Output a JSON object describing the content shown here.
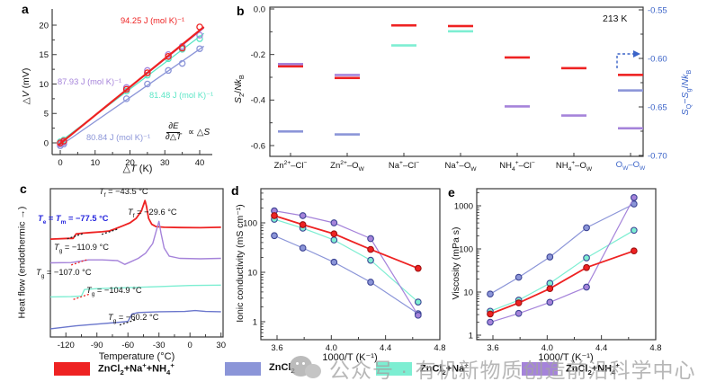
{
  "panel_labels": {
    "a": "a",
    "b": "b",
    "c": "c",
    "d": "d",
    "e": "e"
  },
  "legend": [
    {
      "key": "zncl2-na-nh4",
      "label_html": "ZnCl<sub>2</sub>+Na<sup>+</sup>+NH<sub>4</sub><sup>+</sup>",
      "color": "#ee2222"
    },
    {
      "key": "zncl2",
      "label_html": "ZnCl<sub>2</sub>",
      "color": "#8b95d8"
    },
    {
      "key": "zncl2-na",
      "label_html": "ZnCl<sub>2</sub>+Na<sup>+</sup>",
      "color": "#7deed2"
    },
    {
      "key": "zncl2-nh4",
      "label_html": "ZnCl<sub>2</sub>+NH<sub>4</sub><sup>+</sup>",
      "color": "#a583da"
    }
  ],
  "watermark_text": "公众号 · 有机新物质创造前沿科学中心",
  "chart_data": [
    {
      "id": "a",
      "type": "scatter",
      "xlabel_html": "△<i>T</i> (K)",
      "ylabel_html": "△<i>V</i> (mV)",
      "xticks": [
        0,
        10,
        20,
        30,
        40
      ],
      "yticks": [
        0,
        5,
        10,
        15,
        20
      ],
      "xlim": [
        -2.5,
        42.5
      ],
      "ylim": [
        -2.2,
        21.8
      ],
      "x": [
        0,
        1,
        19,
        25,
        31,
        35,
        40
      ],
      "series": [
        {
          "key": "zncl2-na-nh4",
          "color": "#ee2222",
          "values": [
            0.0,
            0.3,
            9.1,
            11.9,
            14.7,
            16.1,
            19.7
          ],
          "slope_label": "94.25 J (mol K)⁻¹"
        },
        {
          "key": "zncl2-nh4",
          "color": "#a583da",
          "values": [
            -0.2,
            0.1,
            9.4,
            12.3,
            15.0,
            16.4,
            18.3
          ],
          "slope_label": "87.93 J (mol K)⁻¹"
        },
        {
          "key": "zncl2-na",
          "color": "#5ce6c6",
          "values": [
            0.2,
            0.5,
            8.8,
            11.5,
            14.3,
            15.9,
            17.7
          ],
          "slope_label": "81.48 J (mol K)⁻¹"
        },
        {
          "key": "zncl2",
          "color": "#8b95d8",
          "values": [
            -0.5,
            -0.2,
            7.5,
            10.0,
            12.3,
            13.5,
            16.0
          ],
          "slope_label": "80.84 J (mol K)⁻¹"
        }
      ],
      "formula": {
        "num_html": "∂<i>E</i>",
        "den_html": "∂△<i>T</i>",
        "rhs_html": "∝ △<i>S</i>"
      }
    },
    {
      "id": "b",
      "type": "levels",
      "note": "213 K",
      "ylabel_left_html": "<i>S</i><sub>2</sub>/<i>Nk</i><sub>B</sub>",
      "ylabel_right_html": "<i>S</i><sub>Q</sub>−<i>S</i><sub>g</sub>/<i>Nk</i><sub>B</sub>",
      "yticks_left": [
        0.0,
        -0.2,
        -0.4,
        -0.6
      ],
      "yticks_right": [
        -0.55,
        -0.6,
        -0.65,
        -0.7
      ],
      "right_axis_color": "#3c64c8",
      "categories_html": [
        "Zn<sup>2+</sup>–Cl<sup>−</sup>",
        "Zn<sup>2+</sup>–O<sub>W</sub>",
        "Na<sup>+</sup>–Cl<sup>−</sup>",
        "Na<sup>+</sup>–O<sub>W</sub>",
        "NH<sub>4</sub><sup>+</sup>–Cl<sup>−</sup>",
        "NH<sub>4</sub><sup>+</sup>–O<sub>W</sub>",
        "O<sub>W</sub>–O<sub>W</sub>"
      ],
      "series": [
        {
          "key": "zncl2-na-nh4",
          "color": "#ee2222",
          "values_left": [
            -0.252,
            -0.303,
            -0.072,
            -0.075,
            -0.213,
            -0.26,
            null
          ],
          "value_right": -0.617
        },
        {
          "key": "zncl2",
          "color": "#8b95d8",
          "values_left": [
            -0.538,
            -0.551,
            null,
            null,
            null,
            null,
            null
          ],
          "value_right": -0.633
        },
        {
          "key": "zncl2-na",
          "color": "#7deed2",
          "values_left": [
            null,
            null,
            -0.16,
            -0.098,
            null,
            null,
            null
          ],
          "value_right": null
        },
        {
          "key": "zncl2-nh4",
          "color": "#a583da",
          "values_left": [
            -0.242,
            -0.29,
            null,
            null,
            -0.428,
            -0.468,
            null
          ],
          "value_right": -0.672
        }
      ]
    },
    {
      "id": "c",
      "type": "line",
      "xlabel": "Temperature (°C)",
      "ylabel": "Heat flow (endothermic →)",
      "xticks": [
        -120,
        -90,
        -60,
        -30,
        0,
        30
      ],
      "xlim": [
        -135,
        32
      ],
      "curves": [
        {
          "key": "zncl2-na-nh4",
          "color": "#ee2222",
          "points": [
            [
              -135,
              0.66
            ],
            [
              -118,
              0.665
            ],
            [
              -113,
              0.665
            ],
            [
              -110,
              0.695
            ],
            [
              -104,
              0.7
            ],
            [
              -95,
              0.705
            ],
            [
              -85,
              0.71
            ],
            [
              -78,
              0.715
            ],
            [
              -72,
              0.73
            ],
            [
              -65,
              0.75
            ],
            [
              -58,
              0.77
            ],
            [
              -52,
              0.8
            ],
            [
              -47,
              0.85
            ],
            [
              -43.5,
              0.92
            ],
            [
              -42,
              0.88
            ],
            [
              -40,
              0.8
            ],
            [
              -37,
              0.76
            ],
            [
              -33,
              0.745
            ],
            [
              -25,
              0.74
            ],
            [
              -10,
              0.738
            ],
            [
              10,
              0.737
            ],
            [
              30,
              0.74
            ]
          ]
        },
        {
          "key": "zncl2-nh4",
          "color": "#a583da",
          "points": [
            [
              -135,
              0.5
            ],
            [
              -115,
              0.502
            ],
            [
              -107,
              0.51
            ],
            [
              -98,
              0.52
            ],
            [
              -85,
              0.52
            ],
            [
              -70,
              0.515
            ],
            [
              -63,
              0.49
            ],
            [
              -58,
              0.505
            ],
            [
              -50,
              0.53
            ],
            [
              -43,
              0.565
            ],
            [
              -36,
              0.63
            ],
            [
              -30,
              0.78
            ],
            [
              -28,
              0.7
            ],
            [
              -25,
              0.6
            ],
            [
              -20,
              0.545
            ],
            [
              -10,
              0.53
            ],
            [
              10,
              0.527
            ],
            [
              30,
              0.53
            ]
          ]
        },
        {
          "key": "zncl2-na",
          "color": "#7deed2",
          "points": [
            [
              -135,
              0.27
            ],
            [
              -115,
              0.272
            ],
            [
              -105,
              0.276
            ],
            [
              -102,
              0.32
            ],
            [
              -90,
              0.326
            ],
            [
              -60,
              0.333
            ],
            [
              -30,
              0.34
            ],
            [
              0,
              0.347
            ],
            [
              30,
              0.35
            ]
          ]
        },
        {
          "key": "zncl2",
          "color": "#6a76cc",
          "points": [
            [
              -135,
              0.055
            ],
            [
              -110,
              0.075
            ],
            [
              -85,
              0.09
            ],
            [
              -67,
              0.1
            ],
            [
              -60,
              0.105
            ],
            [
              -56,
              0.155
            ],
            [
              -50,
              0.165
            ],
            [
              -30,
              0.17
            ],
            [
              -5,
              0.172
            ],
            [
              5,
              0.178
            ],
            [
              15,
              0.172
            ],
            [
              30,
              0.17
            ]
          ]
        }
      ],
      "annotations": [
        {
          "key": "tf1",
          "html": "<i>T</i><sub>f</sub> = −43.5 °C",
          "color": "#111111"
        },
        {
          "key": "tetm",
          "html": "<i>T</i><sub>e</sub> = <i>T</i><sub>m</sub> = −77.5 °C",
          "color": "#2424dd"
        },
        {
          "key": "tg1",
          "html": "<i>T</i><sub>g</sub> = −110.9 °C",
          "color": "#111111"
        },
        {
          "key": "tf2",
          "html": "<i>T</i><sub>f</sub> = −29.6 °C",
          "color": "#111111"
        },
        {
          "key": "tg2",
          "html": "<i>T</i><sub>g</sub> = −107.0 °C",
          "color": "#111111"
        },
        {
          "key": "tg3",
          "html": "<i>T</i><sub>g</sub> = −104.9 °C",
          "color": "#111111"
        },
        {
          "key": "tg4",
          "html": "<i>T</i><sub>g</sub> = −60.2 °C",
          "color": "#111111"
        }
      ],
      "tangents": [
        {
          "x": -110.9,
          "curve": 0,
          "color": "#222222"
        },
        {
          "x": -77.5,
          "curve": 0,
          "color": "#222222"
        },
        {
          "x": -107.0,
          "curve": 1,
          "color": "#ee2222"
        },
        {
          "x": -104.9,
          "curve": 2,
          "color": "#ee2222"
        },
        {
          "x": -60.2,
          "curve": 3,
          "color": "#222222"
        }
      ]
    },
    {
      "id": "d",
      "type": "line-log",
      "xlabel": "1000/T (K⁻¹)",
      "ylabel": "Ionic conductivity (mS cm⁻¹)",
      "xticks": [
        3.6,
        4.0,
        4.4,
        4.8
      ],
      "yticks": [
        1,
        10,
        100
      ],
      "xlim": [
        3.45,
        4.85
      ],
      "ylim_log": [
        0.43,
        490
      ],
      "x": [
        3.58,
        3.79,
        4.02,
        4.29,
        4.64
      ],
      "series": [
        {
          "key": "zncl2-na",
          "color": "#7deed2",
          "values": [
            118,
            78,
            45,
            17.5,
            2.5
          ]
        },
        {
          "key": "zncl2",
          "color": "#8b95d8",
          "values": [
            55,
            31,
            16,
            6.3,
            1.45
          ]
        },
        {
          "key": "zncl2-nh4",
          "color": "#a583da",
          "values": [
            175,
            140,
            100,
            48,
            1.35
          ]
        },
        {
          "key": "zncl2-na-nh4",
          "color": "#ee2222",
          "values": [
            140,
            92,
            60,
            29,
            12
          ]
        }
      ]
    },
    {
      "id": "e",
      "type": "line-log",
      "xlabel": "1000/T (K⁻¹)",
      "ylabel": "Viscosity (mPa s)",
      "xticks": [
        3.6,
        4.0,
        4.4,
        4.8
      ],
      "yticks": [
        1,
        10,
        100,
        1000
      ],
      "xlim": [
        3.45,
        4.85
      ],
      "ylim_log": [
        0.79,
        2500
      ],
      "x": [
        3.58,
        3.79,
        4.02,
        4.29,
        4.64
      ],
      "series": [
        {
          "key": "zncl2-na",
          "color": "#7deed2",
          "values": [
            3.6,
            6.5,
            16,
            62,
            270
          ]
        },
        {
          "key": "zncl2",
          "color": "#8b95d8",
          "values": [
            9,
            22,
            65,
            310,
            1100
          ]
        },
        {
          "key": "zncl2-nh4",
          "color": "#a583da",
          "values": [
            2,
            3.2,
            5.8,
            13,
            1550
          ]
        },
        {
          "key": "zncl2-na-nh4",
          "color": "#ee2222",
          "values": [
            3.1,
            5.6,
            12,
            37,
            90
          ]
        }
      ]
    }
  ]
}
